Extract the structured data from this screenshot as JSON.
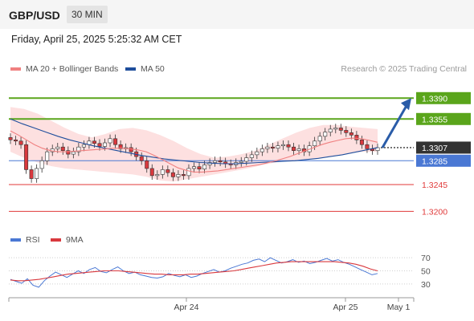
{
  "header": {
    "pair": "GBP/USD",
    "timeframe": "30 MIN"
  },
  "datetime": "Friday, April 25, 2025 5:25:32 AM CET",
  "legend": {
    "ma20_label": "MA 20 + Bollinger Bands",
    "ma50_label": "MA 50",
    "rsi_label": "RSI",
    "rsi_ma_label": "9MA"
  },
  "credit": "Research © 2025 Trading Central",
  "colors": {
    "bullish_target": "#5aa51b",
    "current_price": "#333333",
    "pivot": "#4a78d4",
    "support": "#e03a3a",
    "bollinger_fill": "#fde0e0",
    "ma20": "#f08080",
    "ma50": "#1f4e9c",
    "candle_up": "#ffffff",
    "candle_down": "#d9393e",
    "rsi": "#4a78d4",
    "rsi_ma": "#d9393e"
  },
  "chart_data": {
    "type": "candlestick",
    "x_ticks": [
      "Apr 24",
      "Apr 25",
      "May 1"
    ],
    "ylim": [
      1.3175,
      1.342
    ],
    "levels": [
      {
        "label": "1.3390",
        "value": 1.339,
        "kind": "resistance"
      },
      {
        "label": "1.3355",
        "value": 1.3355,
        "kind": "resistance"
      },
      {
        "label": "1.3307",
        "value": 1.3307,
        "kind": "current"
      },
      {
        "label": "1.3285",
        "value": 1.3285,
        "kind": "pivot"
      },
      {
        "label": "1.3245",
        "value": 1.3245,
        "kind": "support"
      },
      {
        "label": "1.3200",
        "value": 1.32,
        "kind": "support"
      }
    ],
    "forecast_arrow": {
      "from": 1.3307,
      "to": 1.339
    },
    "close_series": [
      1.332,
      1.3318,
      1.3312,
      1.327,
      1.3255,
      1.3272,
      1.3285,
      1.33,
      1.3305,
      1.3308,
      1.3302,
      1.3296,
      1.33,
      1.3308,
      1.3312,
      1.3318,
      1.3314,
      1.3309,
      1.3315,
      1.3322,
      1.3312,
      1.3305,
      1.3307,
      1.33,
      1.3292,
      1.3285,
      1.3272,
      1.326,
      1.3262,
      1.327,
      1.3265,
      1.3258,
      1.3262,
      1.326,
      1.3272,
      1.3275,
      1.3271,
      1.3278,
      1.3282,
      1.3285,
      1.3283,
      1.328,
      1.3278,
      1.3282,
      1.3284,
      1.329,
      1.3295,
      1.33,
      1.3305,
      1.3308,
      1.3306,
      1.331,
      1.3312,
      1.3308,
      1.3302,
      1.3305,
      1.33,
      1.331,
      1.3318,
      1.3326,
      1.3333,
      1.3338,
      1.334,
      1.3336,
      1.3332,
      1.3328,
      1.332,
      1.3312,
      1.3305,
      1.3302,
      1.3307
    ],
    "ma20": [
      1.3335,
      1.3328,
      1.332,
      1.3312,
      1.3306,
      1.3302,
      1.33,
      1.33,
      1.3301,
      1.3302,
      1.3303,
      1.3304,
      1.3305,
      1.3306,
      1.3306,
      1.3305,
      1.3303,
      1.33,
      1.3294,
      1.3287,
      1.328,
      1.3273,
      1.3269,
      1.3266,
      1.3266,
      1.3267,
      1.3268,
      1.327,
      1.3272,
      1.3274,
      1.3276,
      1.3278,
      1.3281,
      1.3284,
      1.3288,
      1.3292,
      1.3297,
      1.3302,
      1.3307,
      1.3312,
      1.3316,
      1.3319,
      1.3322,
      1.3323,
      1.3322,
      1.3319,
      1.3316
    ],
    "ma50": [
      1.3355,
      1.3347,
      1.334,
      1.3333,
      1.3326,
      1.332,
      1.3315,
      1.331,
      1.3306,
      1.3302,
      1.3298,
      1.3294,
      1.3291,
      1.3288,
      1.3286,
      1.3284,
      1.3282,
      1.3281,
      1.328,
      1.328,
      1.3281,
      1.3282,
      1.3283,
      1.3284,
      1.3285,
      1.3287,
      1.3289,
      1.3292,
      1.3295,
      1.3299,
      1.3303,
      1.3307
    ],
    "bb_upper": [
      1.3375,
      1.3372,
      1.3364,
      1.3352,
      1.334,
      1.333,
      1.3324,
      1.333,
      1.3338,
      1.334,
      1.3336,
      1.3328,
      1.3318,
      1.3306,
      1.3296,
      1.329,
      1.3292,
      1.3296,
      1.3302,
      1.3312,
      1.3322,
      1.3332,
      1.334,
      1.3345,
      1.3345,
      1.3342,
      1.334,
      1.3338
    ],
    "bb_lower": [
      1.33,
      1.329,
      1.3282,
      1.3276,
      1.3272,
      1.327,
      1.3268,
      1.3266,
      1.3264,
      1.3262,
      1.3258,
      1.3252,
      1.325,
      1.3254,
      1.3258,
      1.3262,
      1.3266,
      1.327,
      1.3275,
      1.328,
      1.3284,
      1.3286,
      1.3288,
      1.329,
      1.3294,
      1.3298,
      1.33,
      1.33
    ],
    "rsi": {
      "ylim": [
        20,
        80
      ],
      "ticks": [
        70,
        50,
        30
      ],
      "values": [
        37,
        34,
        31,
        38,
        28,
        25,
        35,
        42,
        48,
        44,
        40,
        45,
        50,
        46,
        52,
        55,
        49,
        47,
        52,
        56,
        50,
        46,
        48,
        44,
        42,
        40,
        39,
        41,
        46,
        43,
        41,
        44,
        40,
        42,
        46,
        49,
        52,
        48,
        50,
        54,
        57,
        60,
        62,
        66,
        68,
        64,
        70,
        66,
        62,
        64,
        67,
        63,
        65,
        61,
        63,
        66,
        69,
        65,
        67,
        63,
        60,
        56,
        52,
        48,
        44,
        46
      ],
      "ma9": [
        36,
        35,
        35,
        36,
        37,
        39,
        41,
        43,
        45,
        46,
        47,
        48,
        49,
        50,
        50,
        50,
        49,
        48,
        47,
        46,
        45,
        45,
        44,
        44,
        44,
        45,
        45,
        46,
        47,
        48,
        49,
        50,
        52,
        54,
        56,
        58,
        60,
        62,
        63,
        64,
        64,
        64,
        64,
        64,
        64,
        64,
        63,
        62,
        60,
        57,
        53,
        50
      ]
    }
  }
}
